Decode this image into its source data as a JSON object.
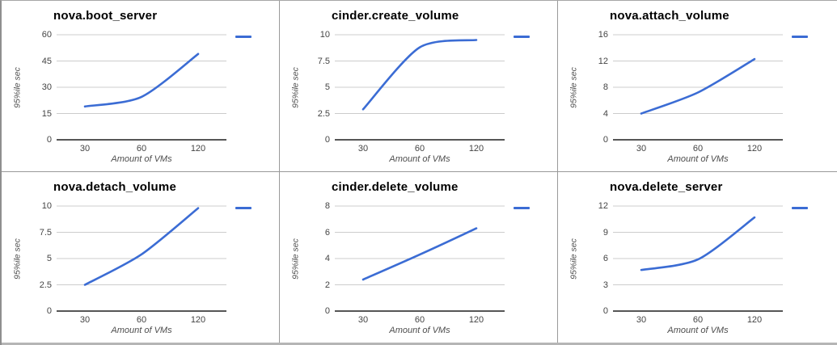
{
  "colors": {
    "series": "#3b6cd4",
    "gridline": "#cccccc",
    "axis_line": "#1f1f1f",
    "tick_text": "#444444",
    "axis_title_text": "#4d4d4d",
    "cell_border": "#999999",
    "bottom_strip": "#b5b5b5"
  },
  "chart_data": [
    {
      "type": "line",
      "title": "nova.boot_server",
      "xlabel": "Amount of VMs",
      "ylabel": "95%ile sec",
      "x": [
        30,
        60,
        120
      ],
      "values": [
        19,
        24.5,
        49
      ],
      "yticks": [
        0,
        15,
        30,
        45,
        60
      ],
      "ylim": [
        0,
        60
      ],
      "grid": true,
      "legend_marker": "dash",
      "legend_position": "right"
    },
    {
      "type": "line",
      "title": "cinder.create_volume",
      "xlabel": "Amount of VMs",
      "ylabel": "95%ile sec",
      "x": [
        30,
        60,
        120
      ],
      "values": [
        2.9,
        8.8,
        9.5
      ],
      "yticks": [
        0,
        2.5,
        5,
        7.5,
        10
      ],
      "ylim": [
        0,
        10
      ],
      "grid": true,
      "legend_marker": "dash",
      "legend_position": "right"
    },
    {
      "type": "line",
      "title": "nova.attach_volume",
      "xlabel": "Amount of VMs",
      "ylabel": "95%ile sec",
      "x": [
        30,
        60,
        120
      ],
      "values": [
        4,
        7.2,
        12.3
      ],
      "yticks": [
        0,
        4,
        8,
        12,
        16
      ],
      "ylim": [
        0,
        16
      ],
      "grid": true,
      "legend_marker": "dash",
      "legend_position": "right"
    },
    {
      "type": "line",
      "title": "nova.detach_volume",
      "xlabel": "Amount of VMs",
      "ylabel": "95%ile sec",
      "x": [
        30,
        60,
        120
      ],
      "values": [
        2.5,
        5.4,
        9.8
      ],
      "yticks": [
        0,
        2.5,
        5,
        7.5,
        10
      ],
      "ylim": [
        0,
        10
      ],
      "grid": true,
      "legend_marker": "dash",
      "legend_position": "right"
    },
    {
      "type": "line",
      "title": "cinder.delete_volume",
      "xlabel": "Amount of VMs",
      "ylabel": "95%ile sec",
      "x": [
        30,
        60,
        120
      ],
      "values": [
        2.4,
        4.3,
        6.3
      ],
      "yticks": [
        0,
        2,
        4,
        6,
        8
      ],
      "ylim": [
        0,
        8
      ],
      "grid": true,
      "legend_marker": "dash",
      "legend_position": "right"
    },
    {
      "type": "line",
      "title": "nova.delete_server",
      "xlabel": "Amount of VMs",
      "ylabel": "95%ile sec",
      "x": [
        30,
        60,
        120
      ],
      "values": [
        4.7,
        5.9,
        10.7
      ],
      "yticks": [
        0,
        3,
        6,
        9,
        12
      ],
      "ylim": [
        0,
        12
      ],
      "grid": true,
      "legend_marker": "dash",
      "legend_position": "right"
    }
  ]
}
